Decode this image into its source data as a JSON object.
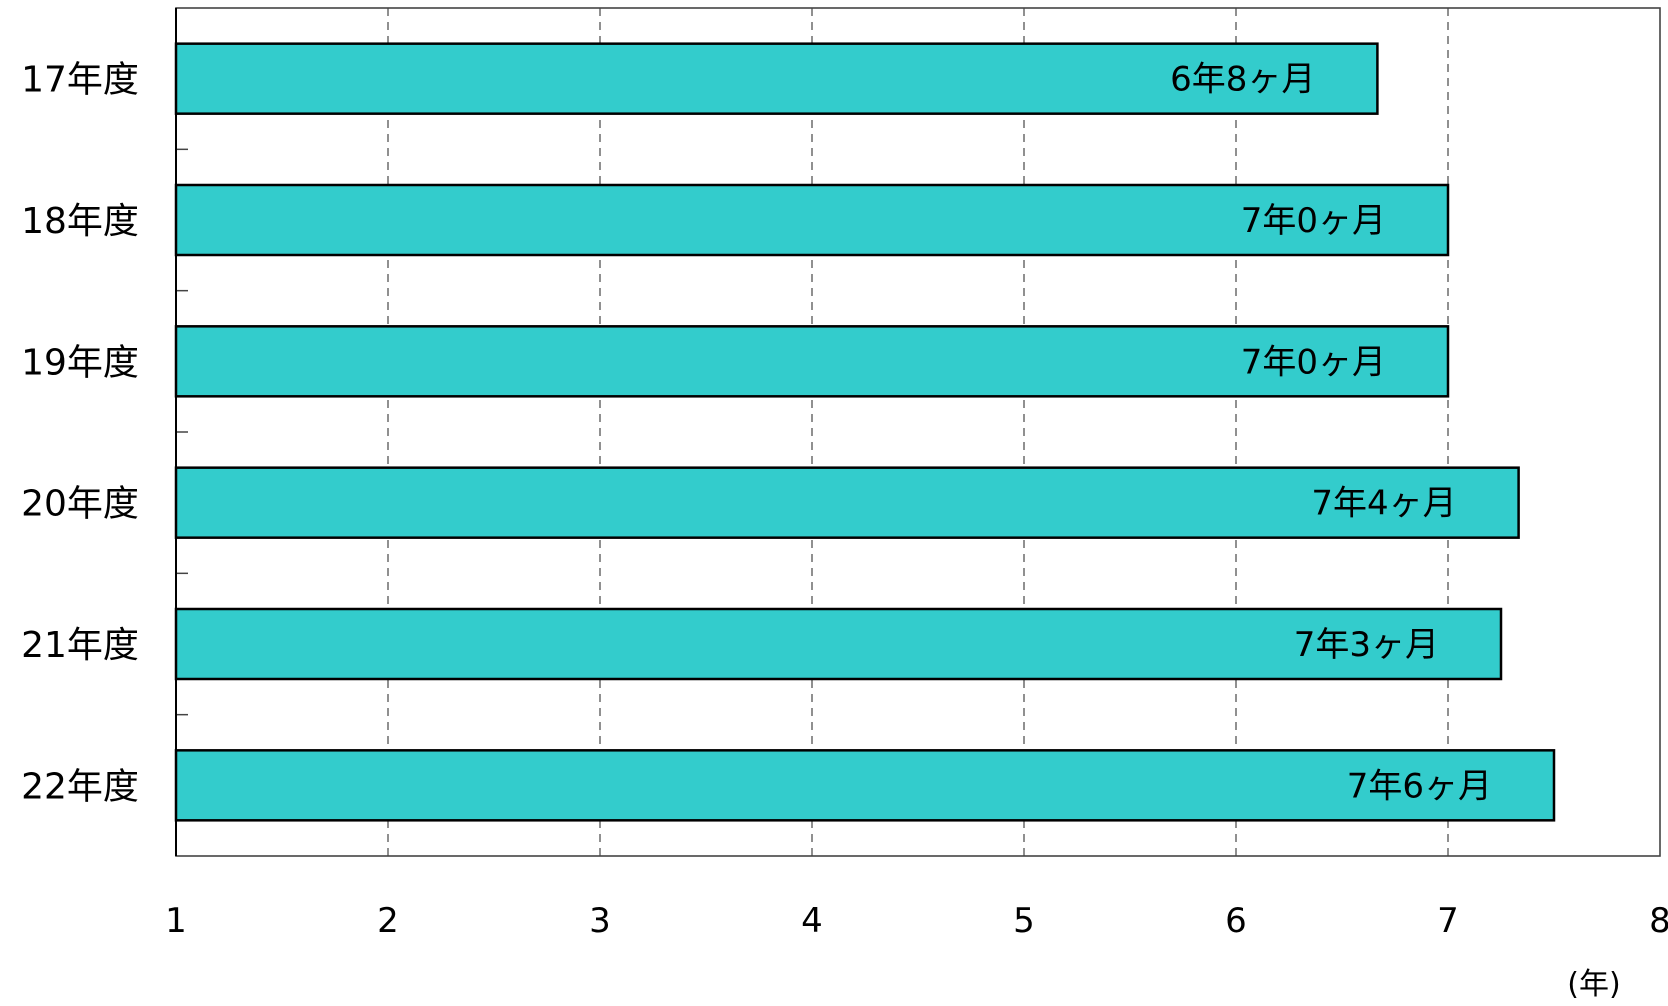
{
  "chart_data": {
    "type": "bar",
    "orientation": "horizontal",
    "categories": [
      "17年度",
      "18年度",
      "19年度",
      "20年度",
      "21年度",
      "22年度"
    ],
    "values": [
      6.667,
      7.0,
      7.0,
      7.333,
      7.25,
      7.5
    ],
    "data_labels": [
      "6年8ヶ月",
      "7年0ヶ月",
      "7年0ヶ月",
      "7年4ヶ月",
      "7年3ヶ月",
      "7年6ヶ月"
    ],
    "xticks": [
      "1",
      "2",
      "3",
      "4",
      "5",
      "6",
      "7",
      "8"
    ],
    "xlim": [
      1,
      8
    ],
    "xunit": "(年)",
    "grid": true,
    "bar_color": "#33cccc"
  }
}
